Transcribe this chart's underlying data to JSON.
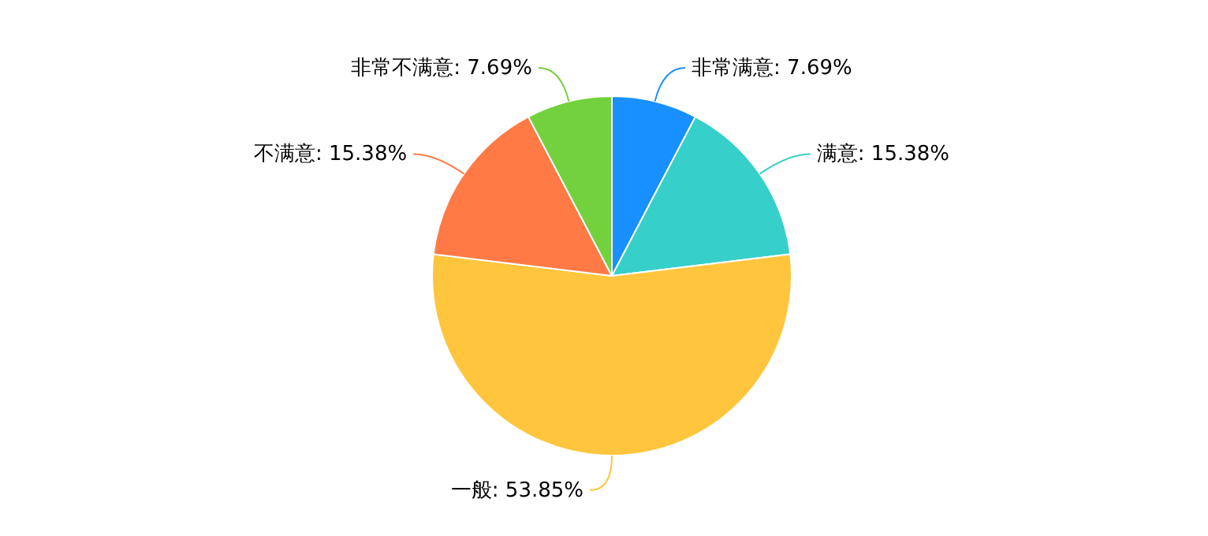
{
  "chart_data": {
    "type": "pie",
    "categories": [
      "非常满意",
      "满意",
      "一般",
      "不满意",
      "非常不满意"
    ],
    "values": [
      7.69,
      15.38,
      53.85,
      15.38,
      7.69
    ],
    "value_labels": [
      "7.69%",
      "15.38%",
      "53.85%",
      "15.38%",
      "7.69%"
    ],
    "colors": [
      "#1890ff",
      "#36cfc9",
      "#ffc53d",
      "#ff7a45",
      "#73d13d"
    ],
    "legend": false
  }
}
